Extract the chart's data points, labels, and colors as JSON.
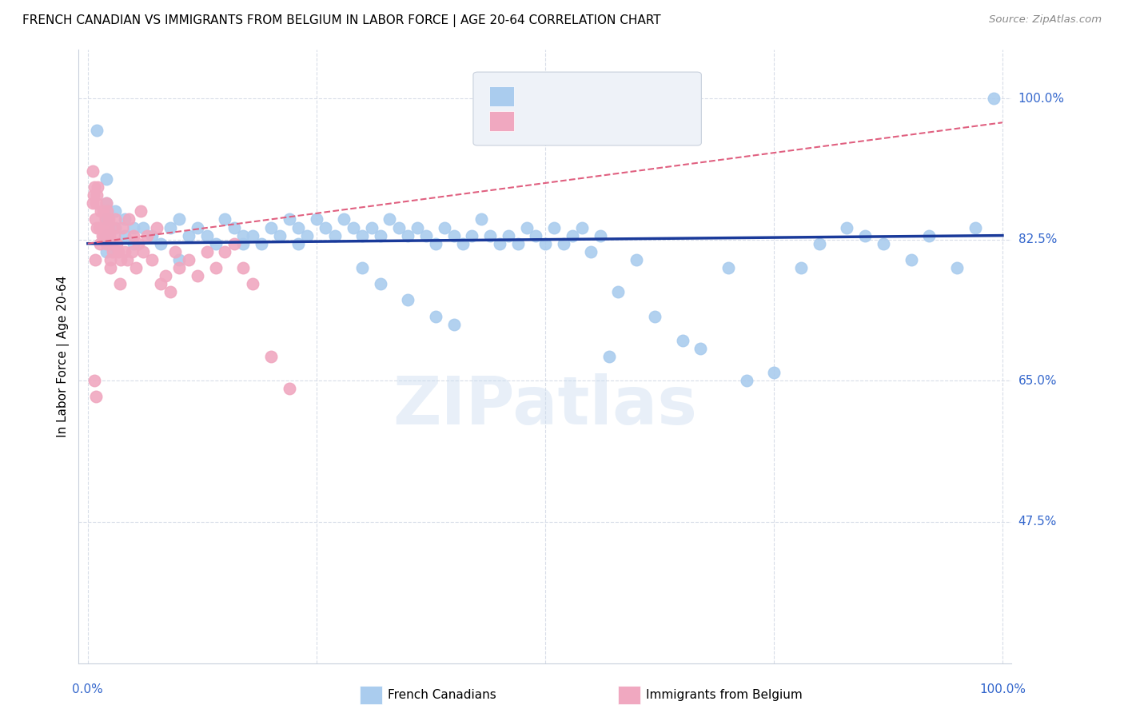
{
  "title": "FRENCH CANADIAN VS IMMIGRANTS FROM BELGIUM IN LABOR FORCE | AGE 20-64 CORRELATION CHART",
  "source": "Source: ZipAtlas.com",
  "ylabel": "In Labor Force | Age 20-64",
  "ytick_labels": [
    "47.5%",
    "65.0%",
    "82.5%",
    "100.0%"
  ],
  "ytick_values": [
    0.475,
    0.65,
    0.825,
    1.0
  ],
  "ymin": 0.3,
  "ymax": 1.06,
  "xmin": -0.01,
  "xmax": 1.01,
  "blue_color": "#aaccee",
  "pink_color": "#f0a8c0",
  "blue_line_color": "#1a3a9a",
  "pink_line_color": "#e06080",
  "label_color": "#3366cc",
  "watermark": "ZIPatlas",
  "blue_scatter_x": [
    0.01,
    0.02,
    0.02,
    0.02,
    0.02,
    0.02,
    0.03,
    0.03,
    0.04,
    0.04,
    0.05,
    0.05,
    0.06,
    0.07,
    0.08,
    0.09,
    0.1,
    0.1,
    0.11,
    0.12,
    0.13,
    0.14,
    0.15,
    0.16,
    0.17,
    0.17,
    0.18,
    0.19,
    0.2,
    0.21,
    0.22,
    0.23,
    0.23,
    0.24,
    0.25,
    0.26,
    0.27,
    0.28,
    0.29,
    0.3,
    0.31,
    0.32,
    0.33,
    0.34,
    0.35,
    0.36,
    0.37,
    0.38,
    0.39,
    0.4,
    0.41,
    0.42,
    0.43,
    0.44,
    0.45,
    0.46,
    0.47,
    0.48,
    0.49,
    0.5,
    0.51,
    0.52,
    0.53,
    0.54,
    0.55,
    0.56,
    0.57,
    0.58,
    0.6,
    0.62,
    0.65,
    0.67,
    0.7,
    0.72,
    0.75,
    0.78,
    0.8,
    0.83,
    0.85,
    0.87,
    0.9,
    0.92,
    0.95,
    0.97,
    0.99,
    0.3,
    0.32,
    0.35,
    0.38,
    0.4
  ],
  "blue_scatter_y": [
    0.96,
    0.9,
    0.87,
    0.85,
    0.83,
    0.81,
    0.86,
    0.84,
    0.85,
    0.83,
    0.84,
    0.82,
    0.84,
    0.83,
    0.82,
    0.84,
    0.85,
    0.8,
    0.83,
    0.84,
    0.83,
    0.82,
    0.85,
    0.84,
    0.83,
    0.82,
    0.83,
    0.82,
    0.84,
    0.83,
    0.85,
    0.84,
    0.82,
    0.83,
    0.85,
    0.84,
    0.83,
    0.85,
    0.84,
    0.83,
    0.84,
    0.83,
    0.85,
    0.84,
    0.83,
    0.84,
    0.83,
    0.82,
    0.84,
    0.83,
    0.82,
    0.83,
    0.85,
    0.83,
    0.82,
    0.83,
    0.82,
    0.84,
    0.83,
    0.82,
    0.84,
    0.82,
    0.83,
    0.84,
    0.81,
    0.83,
    0.68,
    0.76,
    0.8,
    0.73,
    0.7,
    0.69,
    0.79,
    0.65,
    0.66,
    0.79,
    0.82,
    0.84,
    0.83,
    0.82,
    0.8,
    0.83,
    0.79,
    0.84,
    1.0,
    0.79,
    0.77,
    0.75,
    0.73,
    0.72
  ],
  "pink_scatter_x": [
    0.005,
    0.005,
    0.006,
    0.007,
    0.008,
    0.008,
    0.009,
    0.01,
    0.01,
    0.011,
    0.012,
    0.013,
    0.014,
    0.015,
    0.016,
    0.017,
    0.018,
    0.019,
    0.02,
    0.02,
    0.021,
    0.022,
    0.023,
    0.024,
    0.025,
    0.025,
    0.026,
    0.027,
    0.028,
    0.029,
    0.03,
    0.032,
    0.033,
    0.035,
    0.036,
    0.038,
    0.04,
    0.043,
    0.045,
    0.048,
    0.05,
    0.053,
    0.055,
    0.058,
    0.06,
    0.065,
    0.07,
    0.075,
    0.08,
    0.085,
    0.09,
    0.095,
    0.1,
    0.11,
    0.12,
    0.13,
    0.14,
    0.15,
    0.16,
    0.17,
    0.18,
    0.2,
    0.22,
    0.007,
    0.009
  ],
  "pink_scatter_y": [
    0.91,
    0.87,
    0.88,
    0.89,
    0.85,
    0.8,
    0.87,
    0.88,
    0.84,
    0.89,
    0.84,
    0.82,
    0.86,
    0.84,
    0.83,
    0.86,
    0.83,
    0.85,
    0.87,
    0.82,
    0.86,
    0.84,
    0.85,
    0.83,
    0.8,
    0.79,
    0.82,
    0.81,
    0.84,
    0.83,
    0.85,
    0.82,
    0.81,
    0.77,
    0.8,
    0.84,
    0.81,
    0.8,
    0.85,
    0.81,
    0.83,
    0.79,
    0.82,
    0.86,
    0.81,
    0.83,
    0.8,
    0.84,
    0.77,
    0.78,
    0.76,
    0.81,
    0.79,
    0.8,
    0.78,
    0.81,
    0.79,
    0.81,
    0.82,
    0.79,
    0.77,
    0.68,
    0.64,
    0.65,
    0.63
  ],
  "blue_trend_x": [
    0.0,
    1.0
  ],
  "blue_trend_y": [
    0.82,
    0.83
  ],
  "pink_trend_x": [
    0.0,
    1.0
  ],
  "pink_trend_y": [
    0.82,
    0.97
  ],
  "grid_color": "#d8dde8",
  "ytick_color": "#3366cc"
}
